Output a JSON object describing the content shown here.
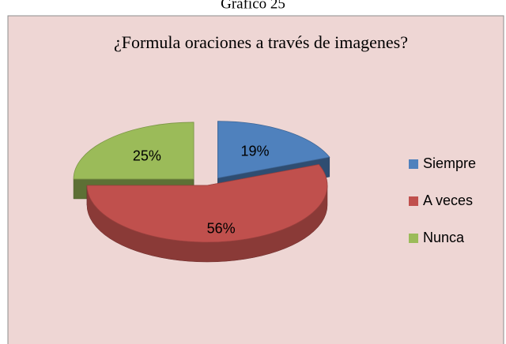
{
  "chart_data": {
    "type": "pie",
    "heading": "Gráfico 25",
    "title": "¿Formula oraciones a través de imagenes?",
    "categories": [
      "Siempre",
      "A veces",
      "Nunca"
    ],
    "values": [
      19,
      56,
      25
    ],
    "value_labels": [
      "19%",
      "56%",
      "25%"
    ],
    "colors": [
      "#4f81bd",
      "#c0504d",
      "#9bbb59"
    ],
    "legend": "right"
  }
}
